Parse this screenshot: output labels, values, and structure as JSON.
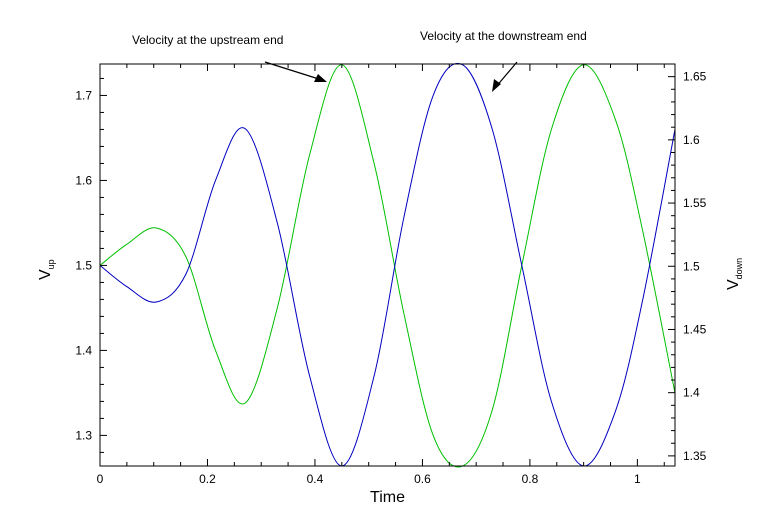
{
  "chart_data": {
    "type": "line",
    "xlabel": "Time",
    "ylabel_left": {
      "main": "V",
      "sub": "up"
    },
    "ylabel_right": {
      "main": "V",
      "sub": "down"
    },
    "xlim": [
      0,
      1.07
    ],
    "ylim_left": [
      1.264,
      1.737
    ],
    "ylim_right": [
      1.342,
      1.66
    ],
    "x_ticks": [
      "0",
      "0.2",
      "0.4",
      "0.6",
      "0.8",
      "1"
    ],
    "x_tick_values": [
      0,
      0.2,
      0.4,
      0.6,
      0.8,
      1.0
    ],
    "y_left_ticks": [
      "1.3",
      "1.4",
      "1.5",
      "1.6",
      "1.7"
    ],
    "y_left_tick_values": [
      1.3,
      1.4,
      1.5,
      1.6,
      1.7
    ],
    "y_right_ticks": [
      "1.35",
      "1.4",
      "1.45",
      "1.5",
      "1.55",
      "1.6",
      "1.65"
    ],
    "y_right_tick_values": [
      1.35,
      1.4,
      1.45,
      1.5,
      1.55,
      1.6,
      1.65
    ],
    "grid": false,
    "annotations": [
      {
        "text": "Velocity at the upstream end",
        "points_to_series": 0
      },
      {
        "text": "Velocity at the downstream end",
        "points_to_series": 1
      }
    ],
    "series": [
      {
        "color": "#00c000",
        "axis": "left",
        "x": [
          0,
          0.05,
          0.105,
          0.16,
          0.215,
          0.27,
          0.33,
          0.39,
          0.45,
          0.51,
          0.565,
          0.62,
          0.675,
          0.73,
          0.785,
          0.84,
          0.9,
          0.96,
          1.01,
          1.07
        ],
        "y": [
          1.5,
          1.525,
          1.544,
          1.51,
          1.4,
          1.338,
          1.45,
          1.63,
          1.736,
          1.62,
          1.445,
          1.3,
          1.264,
          1.33,
          1.5,
          1.66,
          1.736,
          1.67,
          1.54,
          1.35
        ]
      },
      {
        "color": "#0000c0",
        "axis": "left",
        "x": [
          0,
          0.05,
          0.105,
          0.16,
          0.215,
          0.27,
          0.33,
          0.39,
          0.45,
          0.51,
          0.565,
          0.62,
          0.675,
          0.73,
          0.785,
          0.84,
          0.9,
          0.96,
          1.01,
          1.07
        ],
        "y": [
          1.5,
          1.475,
          1.457,
          1.49,
          1.6,
          1.661,
          1.55,
          1.37,
          1.264,
          1.37,
          1.555,
          1.7,
          1.736,
          1.66,
          1.5,
          1.34,
          1.264,
          1.33,
          1.46,
          1.66
        ]
      }
    ]
  }
}
